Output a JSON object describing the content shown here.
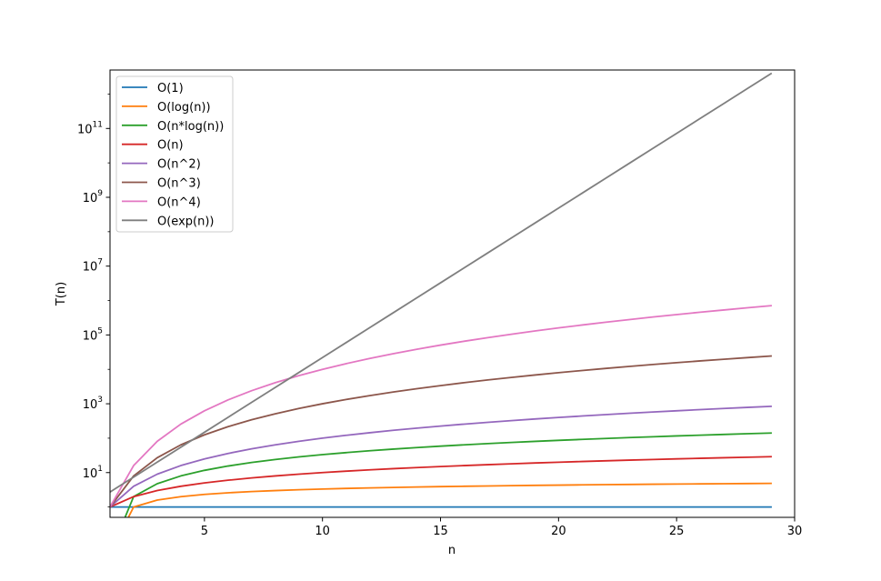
{
  "chart_data": {
    "type": "line",
    "xlabel": "n",
    "ylabel": "T(n)",
    "yscale": "log",
    "xlim": [
      1,
      30
    ],
    "ylim": [
      0.5,
      5000000000000.0
    ],
    "x_ticks": [
      5,
      10,
      15,
      20,
      25,
      30
    ],
    "y_ticks": [
      {
        "value": 10,
        "base": "10",
        "exp": "1"
      },
      {
        "value": 1000,
        "base": "10",
        "exp": "3"
      },
      {
        "value": 100000,
        "base": "10",
        "exp": "5"
      },
      {
        "value": 10000000,
        "base": "10",
        "exp": "7"
      },
      {
        "value": 1000000000,
        "base": "10",
        "exp": "9"
      },
      {
        "value": 100000000000,
        "base": "10",
        "exp": "11"
      }
    ],
    "grid": false,
    "legend_position": "top-left",
    "x": [
      1,
      2,
      3,
      4,
      5,
      6,
      7,
      8,
      9,
      10,
      11,
      12,
      13,
      14,
      15,
      16,
      17,
      18,
      19,
      20,
      21,
      22,
      23,
      24,
      25,
      26,
      27,
      28,
      29
    ],
    "series": [
      {
        "name": "O(1)",
        "color": "#1f77b4",
        "function": "constant"
      },
      {
        "name": "O(log(n))",
        "color": "#ff7f0e",
        "function": "log"
      },
      {
        "name": "O(n*log(n))",
        "color": "#2ca02c",
        "function": "nlogn"
      },
      {
        "name": "O(n)",
        "color": "#d62728",
        "function": "linear"
      },
      {
        "name": "O(n^2)",
        "color": "#9467bd",
        "function": "quadratic"
      },
      {
        "name": "O(n^3)",
        "color": "#8c564b",
        "function": "cubic"
      },
      {
        "name": "O(n^4)",
        "color": "#e377c2",
        "function": "quartic"
      },
      {
        "name": "O(exp(n))",
        "color": "#7f7f7f",
        "function": "exponential"
      }
    ]
  }
}
